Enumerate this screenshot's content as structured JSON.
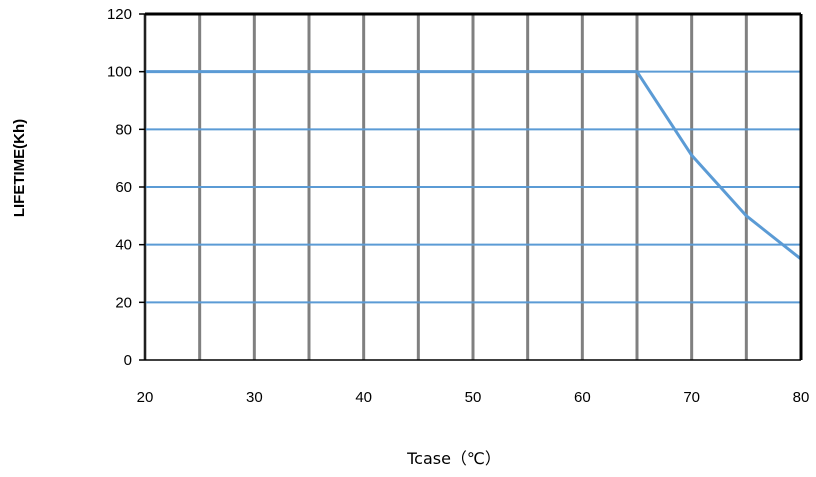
{
  "chart_data": {
    "type": "line",
    "title": "",
    "xlabel": "Tcase（℃）",
    "ylabel": "LIFETIME(Kh)",
    "xlim": [
      20,
      80
    ],
    "ylim": [
      0,
      120
    ],
    "x_ticks": [
      20,
      30,
      40,
      50,
      60,
      70,
      80
    ],
    "y_ticks": [
      0,
      20,
      40,
      60,
      80,
      100,
      120
    ],
    "x_gridlines": [
      20,
      25,
      30,
      35,
      40,
      45,
      50,
      55,
      60,
      65,
      70,
      75,
      80
    ],
    "y_gridlines": [
      20,
      40,
      60,
      80,
      100
    ],
    "grid": true,
    "legend": "none",
    "series": [
      {
        "x": [
          20,
          65,
          70,
          75,
          80
        ],
        "y": [
          100,
          100,
          71,
          50,
          35
        ]
      }
    ],
    "colors": {
      "series": "#5b9bd5",
      "vertical_grid": "#808080",
      "horizontal_grid": "#5b9bd5",
      "frame": "#000000"
    }
  }
}
